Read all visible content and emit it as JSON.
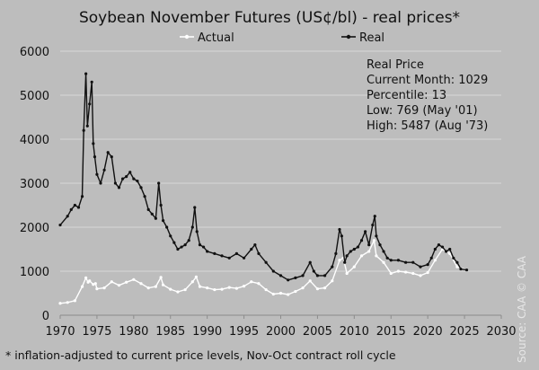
{
  "chart_data": {
    "type": "line",
    "title": "Soybean November Futures (US¢/bl) - real prices*",
    "xlabel": "",
    "ylabel": "",
    "xlim": [
      1970,
      2030
    ],
    "ylim": [
      0,
      6000
    ],
    "x_ticks": [
      "1970",
      "1975",
      "1980",
      "1985",
      "1990",
      "1995",
      "2000",
      "2005",
      "2010",
      "2015",
      "2020",
      "2025",
      "2030"
    ],
    "y_ticks": [
      "0",
      "1000",
      "2000",
      "3000",
      "4000",
      "5000",
      "6000"
    ],
    "grid": "horizontal",
    "legend_position": "top-center",
    "series": [
      {
        "name": "Actual",
        "color": "#ffffff",
        "x": [
          1970,
          1971,
          1972,
          1973,
          1973.5,
          1973.8,
          1974,
          1974.5,
          1974.8,
          1975,
          1976,
          1977,
          1978,
          1979,
          1980,
          1981,
          1982,
          1983,
          1983.7,
          1984,
          1985,
          1986,
          1987,
          1988,
          1988.5,
          1989,
          1990,
          1991,
          1992,
          1993,
          1994,
          1995,
          1996,
          1997,
          1998,
          1999,
          2000,
          2001,
          2002,
          2003,
          2004,
          2005,
          2006,
          2007,
          2008,
          2008.5,
          2009,
          2010,
          2011,
          2012,
          2012.7,
          2013,
          2014,
          2015,
          2016,
          2017,
          2018,
          2019,
          2020,
          2021,
          2022,
          2023,
          2024,
          2025.3
        ],
        "y": [
          270,
          290,
          330,
          650,
          850,
          750,
          780,
          700,
          720,
          600,
          620,
          760,
          680,
          750,
          810,
          720,
          620,
          650,
          860,
          690,
          590,
          530,
          580,
          760,
          870,
          650,
          620,
          580,
          590,
          630,
          610,
          660,
          760,
          720,
          580,
          480,
          500,
          470,
          540,
          620,
          780,
          600,
          620,
          780,
          1250,
          1300,
          950,
          1100,
          1350,
          1450,
          1700,
          1350,
          1200,
          950,
          1000,
          980,
          950,
          900,
          970,
          1250,
          1500,
          1400,
          1100,
          1029
        ]
      },
      {
        "name": "Real",
        "color": "#111111",
        "x": [
          1970,
          1971,
          1971.5,
          1972,
          1972.5,
          1973,
          1973.2,
          1973.5,
          1973.7,
          1974,
          1974.3,
          1974.5,
          1974.7,
          1975,
          1975.5,
          1976,
          1976.5,
          1977,
          1977.5,
          1978,
          1978.5,
          1979,
          1979.5,
          1980,
          1980.5,
          1981,
          1981.5,
          1982,
          1982.5,
          1983,
          1983.4,
          1983.7,
          1984,
          1984.5,
          1985,
          1985.5,
          1986,
          1986.5,
          1987,
          1987.5,
          1988,
          1988.3,
          1988.6,
          1989,
          1989.5,
          1990,
          1991,
          1992,
          1993,
          1994,
          1995,
          1996,
          1996.5,
          1997,
          1998,
          1999,
          2000,
          2001,
          2002,
          2003,
          2004,
          2004.5,
          2005,
          2006,
          2007,
          2007.5,
          2008,
          2008.3,
          2008.7,
          2009,
          2009.5,
          2010,
          2010.5,
          2011,
          2011.5,
          2012,
          2012.5,
          2012.8,
          2013,
          2013.5,
          2014,
          2014.5,
          2015,
          2016,
          2017,
          2018,
          2019,
          2020,
          2020.5,
          2021,
          2021.5,
          2022,
          2022.5,
          2023,
          2023.5,
          2024,
          2024.5,
          2025.3
        ],
        "y": [
          2050,
          2250,
          2400,
          2500,
          2450,
          2700,
          4200,
          5487,
          4300,
          4800,
          5300,
          3900,
          3600,
          3200,
          3000,
          3300,
          3700,
          3600,
          3000,
          2900,
          3100,
          3150,
          3250,
          3100,
          3050,
          2900,
          2700,
          2400,
          2300,
          2200,
          3000,
          2500,
          2150,
          2000,
          1800,
          1650,
          1500,
          1550,
          1600,
          1700,
          2000,
          2450,
          1900,
          1600,
          1550,
          1450,
          1400,
          1350,
          1300,
          1400,
          1300,
          1500,
          1600,
          1400,
          1200,
          1000,
          900,
          800,
          850,
          900,
          1200,
          1000,
          900,
          900,
          1100,
          1400,
          1950,
          1800,
          1200,
          1350,
          1450,
          1500,
          1550,
          1700,
          1900,
          1600,
          2050,
          2250,
          1800,
          1600,
          1450,
          1300,
          1250,
          1250,
          1200,
          1200,
          1100,
          1150,
          1300,
          1500,
          1600,
          1550,
          1450,
          1500,
          1300,
          1200,
          1050,
          1029
        ]
      }
    ],
    "annotation": {
      "heading": "Real Price",
      "lines": [
        "Current Month: 1029",
        "Percentile: 13",
        "Low: 769 (May '01)",
        "High: 5487 (Aug '73)"
      ]
    }
  },
  "footnote": "* inflation-adjusted to current price levels, Nov-Oct contract roll cycle",
  "source": "Source: CAA  © CAA"
}
